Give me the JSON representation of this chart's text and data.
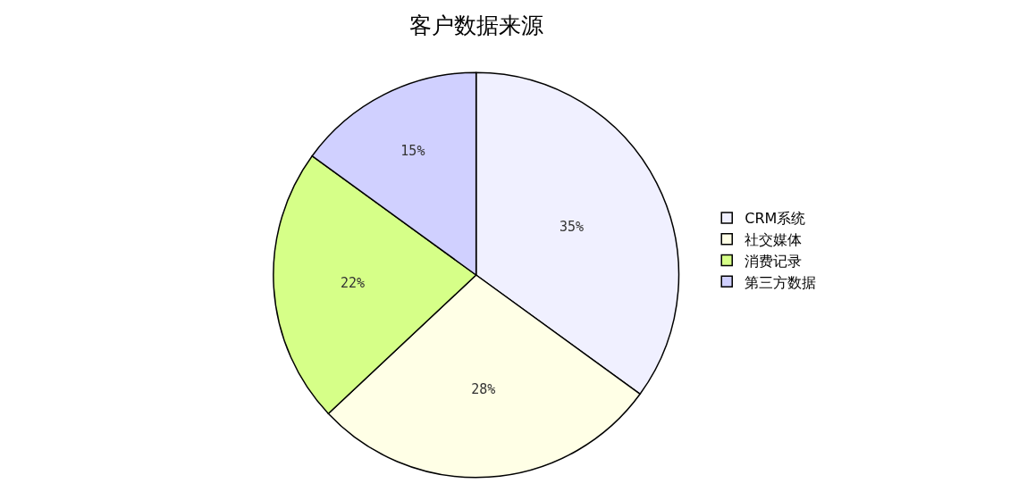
{
  "chart_data": {
    "type": "pie",
    "title": "客户数据来源",
    "categories": [
      "CRM系统",
      "社交媒体",
      "消费记录",
      "第三方数据"
    ],
    "values": [
      35,
      28,
      22,
      15
    ],
    "value_labels": [
      "35%",
      "28%",
      "22%",
      "15%"
    ],
    "colors": [
      "#f0f0ff",
      "#ffffe6",
      "#d6ff88",
      "#d0d0ff"
    ],
    "legend": "right"
  }
}
